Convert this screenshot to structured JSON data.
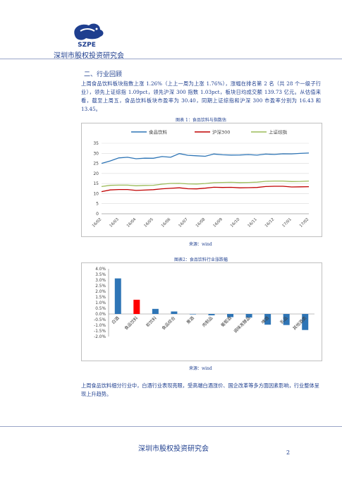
{
  "header": {
    "logo_text": "SZPE",
    "org_name": "深圳市股权投资研究会"
  },
  "section": {
    "title": "二、行业回顾",
    "paragraph": "上周食品饮料板块指数上涨 1.26%（上上一周为上涨 1.76%），涨幅在排名第 2 名（共 28 个一级子行业），领先上证综指 1.09pct，领先沪深 300 指数 1.03pct，板块日均成交额 139.73 亿元。从估值来看，截至上周五，食品饮料板块市盈率为 30.40，同期上证综指和沪深 300 市盈率分别为 16.43 和 13.45。"
  },
  "figure1": {
    "caption": "图表 1：食品饮料与指数估",
    "source": "来源：wind"
  },
  "figure2": {
    "caption": "图表2：食品饮料行业涨跌幅",
    "source": "来源：wind"
  },
  "closing_paragraph": "上周食品饮料细分行业中，白酒行业表现亮眼，受高端白酒涨价、国企改革等多方面因素影响，行业整体呈现上升趋势。",
  "footer": {
    "org_name": "深圳市股权投资研究会",
    "page_number": "2"
  },
  "chart_data": [
    {
      "type": "line",
      "x_ticks": [
        "16/02",
        "16/03",
        "16/04",
        "16/05",
        "16/06",
        "16/07",
        "16/08",
        "16/09",
        "16/10",
        "16/11",
        "16/12",
        "17/01",
        "17/02"
      ],
      "ylim": [
        0,
        35
      ],
      "y_ticks": [
        0,
        5,
        10,
        15,
        20,
        25,
        30,
        35
      ],
      "grid": true,
      "legend_position": "top",
      "series": [
        {
          "name": "食品饮料",
          "color": "#2e75b6",
          "values": [
            25,
            26,
            27.5,
            28,
            27.5,
            27.8,
            27.6,
            28.2,
            27.8,
            29.8,
            29.2,
            29,
            28.6,
            29.5,
            29,
            29,
            29.3,
            29.6,
            29.2,
            29.5,
            29.2,
            29.6,
            29.8,
            30.2,
            30.3
          ]
        },
        {
          "name": "沪深300",
          "color": "#c00000",
          "values": [
            11,
            11.6,
            11.8,
            12,
            11.8,
            12,
            12,
            12.2,
            12.4,
            12.8,
            12.6,
            12.6,
            12.8,
            13,
            12.8,
            13,
            13,
            13.2,
            13.2,
            13.4,
            13.4,
            13.5,
            13.4,
            13.6,
            13.6
          ]
        },
        {
          "name": "上证综指",
          "color": "#9bbb59",
          "values": [
            13.5,
            13.9,
            14,
            14.2,
            14.1,
            14.3,
            14.2,
            14.5,
            14.8,
            15,
            15,
            15,
            15.1,
            15.3,
            15.3,
            15.5,
            15.6,
            15.8,
            15.8,
            16,
            16,
            16.1,
            16.1,
            16.3,
            16.4
          ]
        }
      ]
    },
    {
      "type": "bar",
      "categories": [
        "白酒",
        "食品饮料",
        "软饮料",
        "食品综合",
        "黄酒",
        "肉制品",
        "葡萄酒",
        "调味发酵品",
        "啤酒",
        "乳品",
        "其他酒类"
      ],
      "values": [
        3.15,
        1.26,
        0.45,
        0.22,
        -0.02,
        -0.12,
        -0.28,
        -0.32,
        -0.95,
        -0.98,
        -1.42
      ],
      "colors": [
        "#2e75b6",
        "#ff0000",
        "#2e75b6",
        "#2e75b6",
        "#2e75b6",
        "#2e75b6",
        "#2e75b6",
        "#2e75b6",
        "#2e75b6",
        "#2e75b6",
        "#2e75b6"
      ],
      "ylim": [
        -2.0,
        4.0
      ],
      "y_tick_labels": [
        "4.0%",
        "3.5%",
        "3.0%",
        "2.5%",
        "2.0%",
        "1.5%",
        "1.0%",
        "0.5%",
        "0.0%",
        "-0.5%",
        "-1.0%",
        "-1.5%",
        "-2.0%"
      ],
      "y_tick_values": [
        4.0,
        3.5,
        3.0,
        2.5,
        2.0,
        1.5,
        1.0,
        0.5,
        0.0,
        -0.5,
        -1.0,
        -1.5,
        -2.0
      ]
    }
  ]
}
